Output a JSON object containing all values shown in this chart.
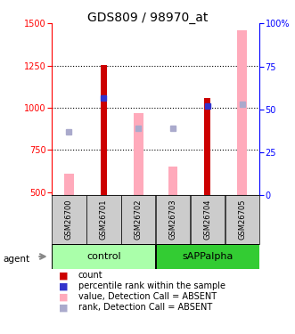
{
  "title": "GDS809 / 98970_at",
  "samples": [
    "GSM26700",
    "GSM26701",
    "GSM26702",
    "GSM26703",
    "GSM26704",
    "GSM26705"
  ],
  "ylim_left": [
    480,
    1500
  ],
  "ylim_right": [
    0,
    100
  ],
  "yticks_left": [
    500,
    750,
    1000,
    1250,
    1500
  ],
  "yticks_right": [
    0,
    25,
    50,
    75,
    100
  ],
  "red_bars": [
    null,
    1255,
    null,
    null,
    1060,
    null
  ],
  "blue_squares_y": [
    null,
    1060,
    null,
    null,
    1010,
    null
  ],
  "pink_bars": [
    610,
    null,
    970,
    650,
    null,
    1460
  ],
  "lavender_squares_y": [
    855,
    null,
    880,
    880,
    null,
    1020
  ],
  "bar_bottom": 480,
  "red_color": "#cc0000",
  "blue_color": "#3333cc",
  "pink_color": "#ffaabb",
  "lavender_color": "#aaaacc",
  "control_color": "#aaffaa",
  "sapp_color": "#33cc33",
  "group_box_color": "#cccccc",
  "title_fontsize": 10,
  "tick_fontsize": 7,
  "sample_fontsize": 6,
  "legend_fontsize": 7
}
